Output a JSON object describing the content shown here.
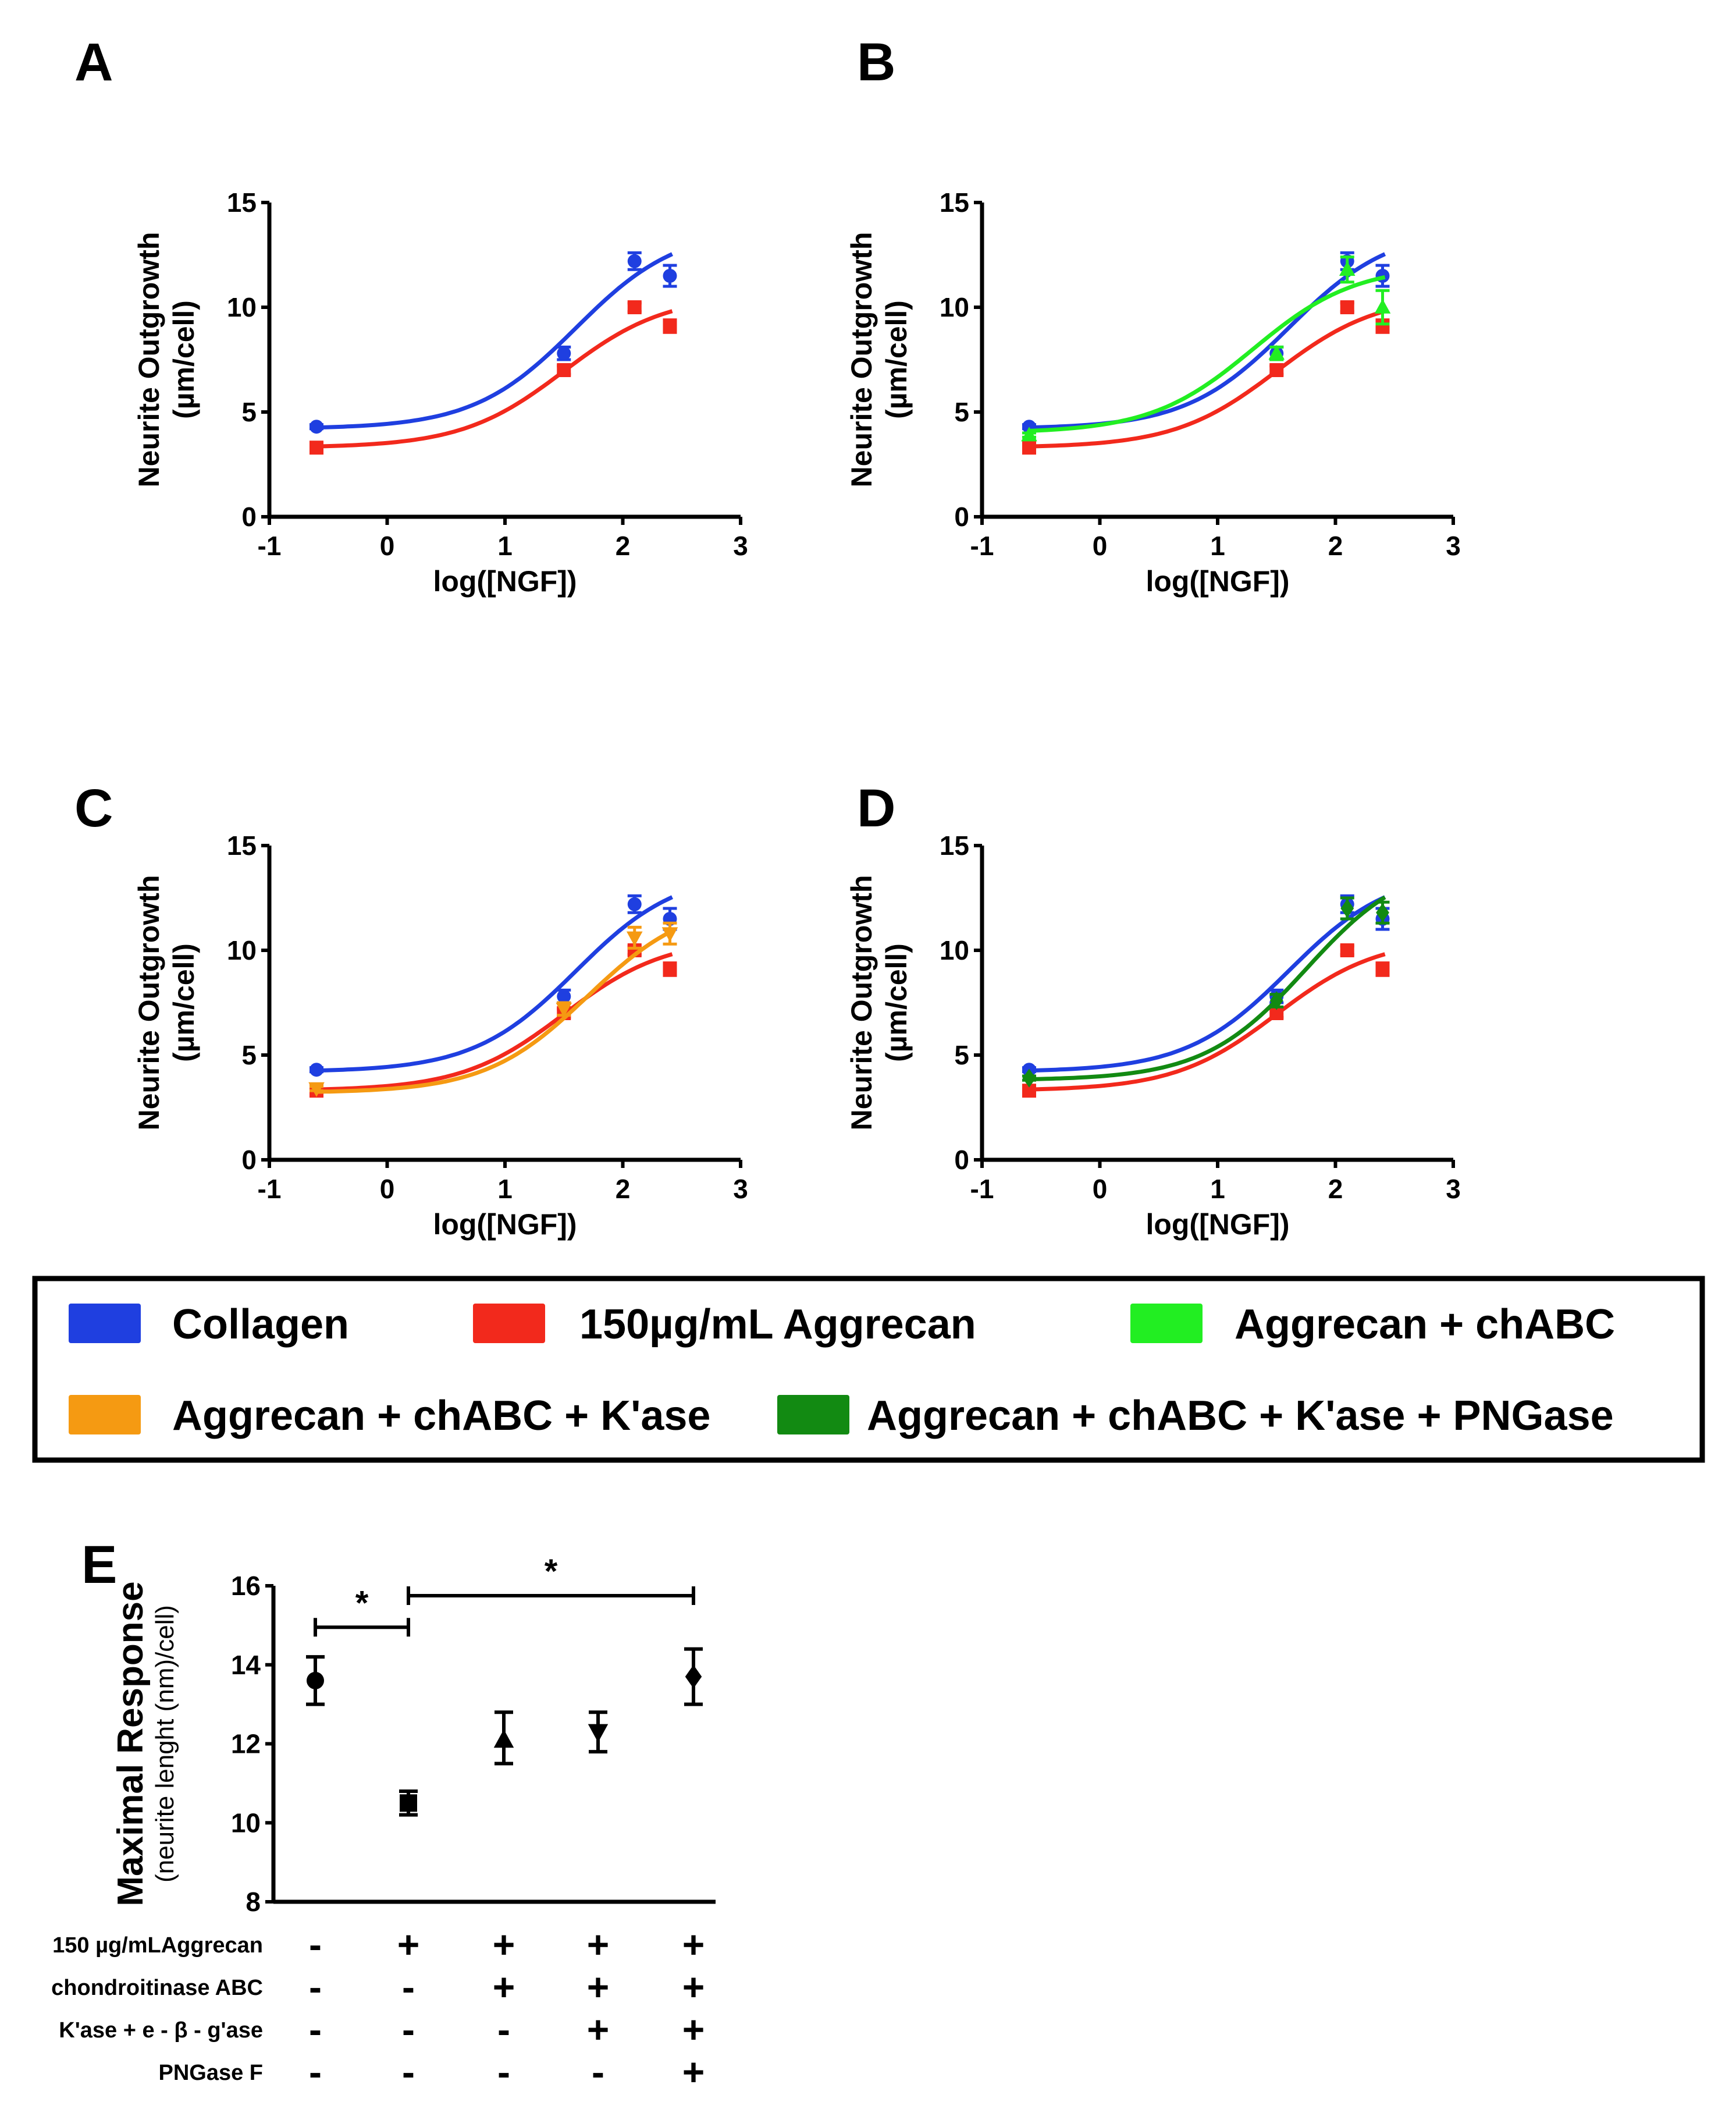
{
  "colors": {
    "collagen": "#1f3fe0",
    "aggrecan": "#f2291c",
    "chabc": "#22ee22",
    "kase": "#f59a12",
    "pngase": "#128a12"
  },
  "legend": {
    "collagen": "Collagen",
    "aggrecan": "150µg/mL Aggrecan",
    "chabc": "Aggrecan + chABC",
    "kase": "Aggrecan + chABC + K'ase",
    "pngase": "Aggrecan + chABC + K'ase + PNGase"
  },
  "chart_data": [
    {
      "id": "A",
      "type": "scatter",
      "xlabel": "log([NGF])",
      "ylabel": "Neurite Outgrowth",
      "ylabel2": "(µm/cell)",
      "xlim": [
        -1,
        3
      ],
      "ylim": [
        0,
        15
      ],
      "xticks": [
        -1,
        0,
        1,
        2,
        3
      ],
      "yticks": [
        0,
        5,
        10,
        15
      ],
      "series": [
        {
          "name": "Collagen",
          "color_key": "collagen",
          "marker": "circle",
          "x": [
            -0.6,
            1.5,
            2.1,
            2.4
          ],
          "y": [
            4.3,
            7.8,
            12.2,
            11.5
          ],
          "err": [
            0.1,
            0.3,
            0.4,
            0.5
          ],
          "fit": {
            "bottom": 4.2,
            "top": 13.8,
            "logec50": 1.6,
            "hill": 1.0
          }
        },
        {
          "name": "150µg/mL Aggrecan",
          "color_key": "aggrecan",
          "marker": "square",
          "x": [
            -0.6,
            1.5,
            2.1,
            2.4
          ],
          "y": [
            3.3,
            7.0,
            10.0,
            9.1
          ],
          "err": [
            0.1,
            0.2,
            0.2,
            0.3
          ],
          "fit": {
            "bottom": 3.3,
            "top": 10.6,
            "logec50": 1.5,
            "hill": 1.0
          }
        }
      ]
    },
    {
      "id": "B",
      "type": "scatter",
      "xlabel": "log([NGF])",
      "ylabel": "Neurite Outgrowth",
      "ylabel2": "(µm/cell)",
      "xlim": [
        -1,
        3
      ],
      "ylim": [
        0,
        15
      ],
      "xticks": [
        -1,
        0,
        1,
        2,
        3
      ],
      "yticks": [
        0,
        5,
        10,
        15
      ],
      "series": [
        {
          "name": "Collagen",
          "color_key": "collagen",
          "marker": "circle",
          "x": [
            -0.6,
            1.5,
            2.1,
            2.4
          ],
          "y": [
            4.3,
            7.8,
            12.2,
            11.5
          ],
          "err": [
            0.1,
            0.3,
            0.4,
            0.5
          ],
          "fit": {
            "bottom": 4.2,
            "top": 13.8,
            "logec50": 1.6,
            "hill": 1.0
          }
        },
        {
          "name": "150µg/mL Aggrecan",
          "color_key": "aggrecan",
          "marker": "square",
          "x": [
            -0.6,
            1.5,
            2.1,
            2.4
          ],
          "y": [
            3.3,
            7.0,
            10.0,
            9.1
          ],
          "err": [
            0.1,
            0.2,
            0.2,
            0.3
          ],
          "fit": {
            "bottom": 3.3,
            "top": 10.6,
            "logec50": 1.5,
            "hill": 1.0
          }
        },
        {
          "name": "Aggrecan + chABC",
          "color_key": "chabc",
          "marker": "triangle-up",
          "x": [
            -0.6,
            1.5,
            2.1,
            2.4
          ],
          "y": [
            3.9,
            7.8,
            11.8,
            10.0
          ],
          "err": [
            0.1,
            0.3,
            0.6,
            0.8
          ],
          "fit": {
            "bottom": 4.0,
            "top": 12.0,
            "logec50": 1.3,
            "hill": 1.0
          }
        }
      ]
    },
    {
      "id": "C",
      "type": "scatter",
      "xlabel": "log([NGF])",
      "ylabel": "Neurite Outgrowth",
      "ylabel2": "(µm/cell)",
      "xlim": [
        -1,
        3
      ],
      "ylim": [
        0,
        15
      ],
      "xticks": [
        -1,
        0,
        1,
        2,
        3
      ],
      "yticks": [
        0,
        5,
        10,
        15
      ],
      "series": [
        {
          "name": "Collagen",
          "color_key": "collagen",
          "marker": "circle",
          "x": [
            -0.6,
            1.5,
            2.1,
            2.4
          ],
          "y": [
            4.3,
            7.8,
            12.2,
            11.5
          ],
          "err": [
            0.1,
            0.3,
            0.4,
            0.5
          ],
          "fit": {
            "bottom": 4.2,
            "top": 13.8,
            "logec50": 1.6,
            "hill": 1.0
          }
        },
        {
          "name": "150µg/mL Aggrecan",
          "color_key": "aggrecan",
          "marker": "square",
          "x": [
            -0.6,
            1.5,
            2.1,
            2.4
          ],
          "y": [
            3.3,
            7.0,
            10.0,
            9.1
          ],
          "err": [
            0.1,
            0.2,
            0.2,
            0.3
          ],
          "fit": {
            "bottom": 3.3,
            "top": 10.6,
            "logec50": 1.5,
            "hill": 1.0
          }
        },
        {
          "name": "Aggrecan + chABC + K'ase",
          "color_key": "kase",
          "marker": "triangle-down",
          "x": [
            -0.6,
            1.5,
            2.1,
            2.4
          ],
          "y": [
            3.4,
            7.2,
            10.6,
            10.8
          ],
          "err": [
            0.1,
            0.3,
            0.5,
            0.5
          ],
          "fit": {
            "bottom": 3.2,
            "top": 12.4,
            "logec50": 1.7,
            "hill": 1.0
          }
        }
      ]
    },
    {
      "id": "D",
      "type": "scatter",
      "xlabel": "log([NGF])",
      "ylabel": "Neurite Outgrowth",
      "ylabel2": "(µm/cell)",
      "xlim": [
        -1,
        3
      ],
      "ylim": [
        0,
        15
      ],
      "xticks": [
        -1,
        0,
        1,
        2,
        3
      ],
      "yticks": [
        0,
        5,
        10,
        15
      ],
      "series": [
        {
          "name": "Collagen",
          "color_key": "collagen",
          "marker": "circle",
          "x": [
            -0.6,
            1.5,
            2.1,
            2.4
          ],
          "y": [
            4.3,
            7.8,
            12.2,
            11.5
          ],
          "err": [
            0.1,
            0.3,
            0.4,
            0.5
          ],
          "fit": {
            "bottom": 4.2,
            "top": 13.8,
            "logec50": 1.6,
            "hill": 1.0
          }
        },
        {
          "name": "150µg/mL Aggrecan",
          "color_key": "aggrecan",
          "marker": "square",
          "x": [
            -0.6,
            1.5,
            2.1,
            2.4
          ],
          "y": [
            3.3,
            7.0,
            10.0,
            9.1
          ],
          "err": [
            0.1,
            0.2,
            0.2,
            0.3
          ],
          "fit": {
            "bottom": 3.3,
            "top": 10.6,
            "logec50": 1.5,
            "hill": 1.0
          }
        },
        {
          "name": "Aggrecan + chABC + K'ase + PNGase",
          "color_key": "pngase",
          "marker": "diamond",
          "x": [
            -0.6,
            1.5,
            2.1,
            2.4
          ],
          "y": [
            3.9,
            7.6,
            12.0,
            11.8
          ],
          "err": [
            0.1,
            0.3,
            0.5,
            0.5
          ],
          "fit": {
            "bottom": 3.8,
            "top": 14.4,
            "logec50": 1.75,
            "hill": 1.0
          }
        }
      ]
    },
    {
      "id": "E",
      "type": "scatter",
      "ylabel": "Maximal Response",
      "ylabel2": "(neurite lenght (nm)/cell)",
      "ylim": [
        8,
        16
      ],
      "yticks": [
        8,
        10,
        12,
        14,
        16
      ],
      "groups": [
        {
          "marker": "circle",
          "mean": 13.6,
          "low": 13.0,
          "high": 14.2
        },
        {
          "marker": "square",
          "mean": 10.5,
          "low": 10.2,
          "high": 10.8
        },
        {
          "marker": "triangle-up",
          "mean": 12.1,
          "low": 11.5,
          "high": 12.8
        },
        {
          "marker": "triangle-down",
          "mean": 12.3,
          "low": 11.8,
          "high": 12.8
        },
        {
          "marker": "diamond",
          "mean": 13.7,
          "low": 13.0,
          "high": 14.4
        }
      ],
      "significance": [
        {
          "from": 0,
          "to": 1,
          "y": 14.95,
          "label": "*"
        },
        {
          "from": 1,
          "to": 4,
          "y": 15.75,
          "label": "*"
        }
      ],
      "conditions": [
        {
          "label": "150 µg/mLAggrecan",
          "signs": [
            "-",
            "+",
            "+",
            "+",
            "+"
          ]
        },
        {
          "label": "chondroitinase ABC",
          "signs": [
            "-",
            "-",
            "+",
            "+",
            "+"
          ]
        },
        {
          "label": "K'ase + e - β - g'ase",
          "signs": [
            "-",
            "-",
            "-",
            "+",
            "+"
          ]
        },
        {
          "label": "PNGase F",
          "signs": [
            "-",
            "-",
            "-",
            "-",
            "+"
          ]
        }
      ]
    }
  ]
}
